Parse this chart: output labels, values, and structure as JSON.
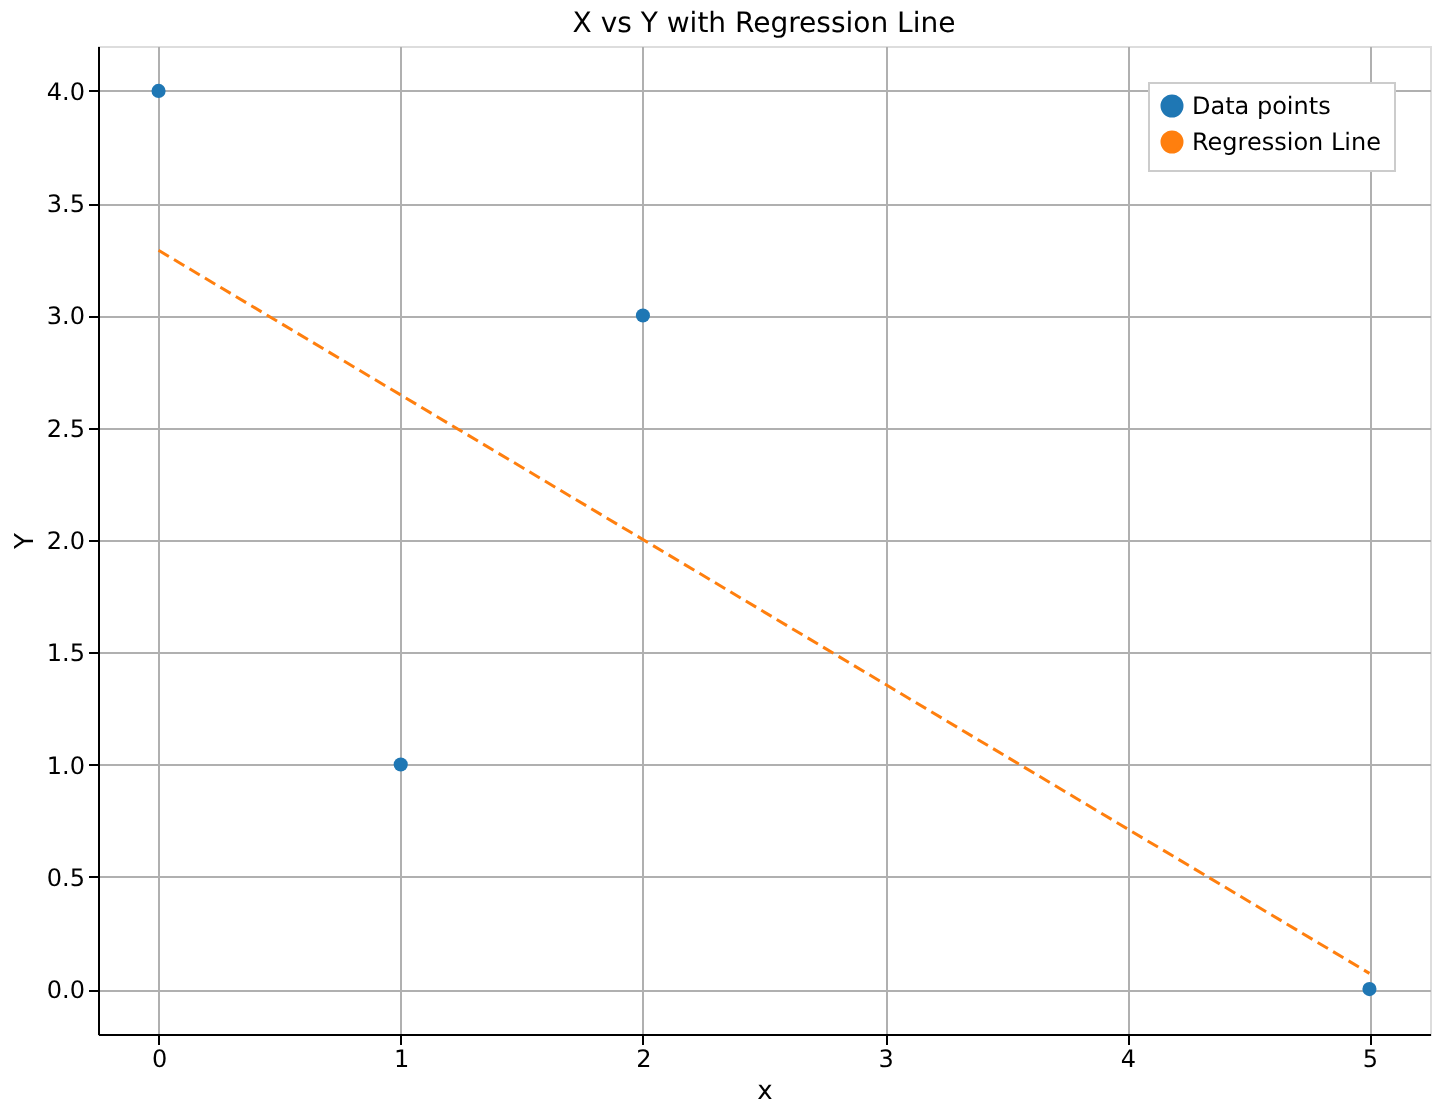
{
  "chart_data": {
    "type": "scatter",
    "title": "X vs Y with Regression Line",
    "xlabel": "x",
    "ylabel": "Y",
    "series": [
      {
        "name": "Data points",
        "color": "#1f77b4",
        "marker": "circle",
        "x": [
          0,
          1,
          2,
          5
        ],
        "values": [
          4,
          1,
          3,
          0
        ]
      },
      {
        "name": "Regression Line",
        "type": "line",
        "color": "#ff7f0e",
        "line_style": "dashed",
        "marker": "none",
        "x": [
          0,
          5
        ],
        "values": [
          3.29,
          0.07
        ]
      }
    ],
    "xlim": [
      -0.25,
      5.25
    ],
    "ylim": [
      -0.2,
      4.2
    ],
    "xticks": [
      0,
      1,
      2,
      3,
      4,
      5
    ],
    "yticks": [
      {
        "value": 0,
        "label": "0.0"
      },
      0.5,
      {
        "value": 1,
        "label": "1.0"
      },
      1.5,
      {
        "value": 2,
        "label": "2.0"
      },
      2.5,
      {
        "value": 3,
        "label": "3.0"
      },
      3.5,
      {
        "value": 4,
        "label": "4.0"
      }
    ],
    "grid": true,
    "legend": "top right"
  }
}
